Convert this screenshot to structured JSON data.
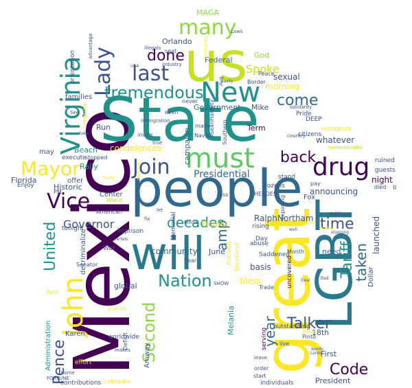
{
  "palette": {
    "dark_purple": "#440154",
    "indigo": "#3b528b",
    "blue": "#31688e",
    "teal": "#21918c",
    "green": "#35b779",
    "lime": "#90d743",
    "yellow": "#fde725",
    "pale": "#c9e021"
  },
  "words": [
    {
      "text": "Mexico",
      "color": "#440154"
    },
    {
      "text": "State",
      "color": "#21918c"
    },
    {
      "text": "people",
      "color": "#31688e"
    },
    {
      "text": "us",
      "color": "#c9e021"
    },
    {
      "text": "will",
      "color": "#2a788e"
    },
    {
      "text": "great",
      "color": "#fde725"
    },
    {
      "text": "LGBT",
      "color": "#2a788e"
    },
    {
      "text": "New",
      "color": "#21918c"
    },
    {
      "text": "must",
      "color": "#5ec962"
    },
    {
      "text": "Virginia",
      "color": "#21918c"
    },
    {
      "text": "drug",
      "color": "#440154"
    },
    {
      "text": "Join",
      "color": "#3b528b"
    },
    {
      "text": "John",
      "color": "#fde725"
    },
    {
      "text": "Mayor",
      "color": "#fde725"
    },
    {
      "text": "Vice",
      "color": "#440154"
    },
    {
      "text": "Lady",
      "color": "#3b528b"
    },
    {
      "text": "last",
      "color": "#3b528b"
    },
    {
      "text": "many",
      "color": "#90d743"
    },
    {
      "text": "tremendous",
      "color": "#21918c"
    },
    {
      "text": "done",
      "color": "#440154"
    },
    {
      "text": "come",
      "color": "#31688e"
    },
    {
      "text": "back",
      "color": "#440154"
    },
    {
      "text": "Spoke",
      "color": "#c9e021"
    },
    {
      "text": "decades",
      "color": "#21918c"
    },
    {
      "text": "Nation",
      "color": "#21918c"
    },
    {
      "text": "Second",
      "color": "#90d743"
    },
    {
      "text": "amp",
      "color": "#31688e"
    },
    {
      "text": "time",
      "color": "#3b528b"
    },
    {
      "text": "Talker",
      "color": "#3b528b"
    },
    {
      "text": "Code",
      "color": "#440154"
    },
    {
      "text": "Tariff",
      "color": "#21918c"
    },
    {
      "text": "taken",
      "color": "#31688e"
    },
    {
      "text": "year",
      "color": "#31688e"
    },
    {
      "text": "United",
      "color": "#21918c"
    },
    {
      "text": "Pence",
      "color": "#3b528b"
    },
    {
      "text": "Governor",
      "color": "#3b528b"
    },
    {
      "text": "Presidential",
      "color": "#31688e"
    },
    {
      "text": "RalphNortham",
      "color": "#3b528b"
    },
    {
      "text": "Orlando",
      "color": "#3b528b"
    },
    {
      "text": "Federal",
      "color": "#31688e"
    },
    {
      "text": "MAGA",
      "color": "#90d743"
    },
    {
      "text": "God",
      "color": "#90d743"
    },
    {
      "text": "sexual",
      "color": "#3b528b"
    },
    {
      "text": "whatever",
      "color": "#3b528b"
    },
    {
      "text": "morning",
      "color": "#fde725"
    },
    {
      "text": "Mike",
      "color": "#3b528b"
    },
    {
      "text": "Government",
      "color": "#31688e"
    },
    {
      "text": "Term",
      "color": "#440154"
    },
    {
      "text": "announcing",
      "color": "#3b528b"
    },
    {
      "text": "launched",
      "color": "#3b528b"
    },
    {
      "text": "night",
      "color": "#440154"
    },
    {
      "text": "Florida",
      "color": "#3b528b"
    },
    {
      "text": "Beach",
      "color": "#21918c"
    },
    {
      "text": "Rally",
      "color": "#21918c"
    },
    {
      "text": "Historic",
      "color": "#3b528b"
    },
    {
      "text": "condolences",
      "color": "#fde725"
    },
    {
      "text": "campaign",
      "color": "#31688e"
    },
    {
      "text": "community",
      "color": "#31688e"
    },
    {
      "text": "Tickets",
      "color": "#fde725"
    },
    {
      "text": "June",
      "color": "#3b528b"
    },
    {
      "text": "bless",
      "color": "#fde725"
    },
    {
      "text": "basis",
      "color": "#3b528b"
    },
    {
      "text": "need",
      "color": "#31688e"
    },
    {
      "text": "First",
      "color": "#3b528b"
    },
    {
      "text": "18th",
      "color": "#3b528b"
    },
    {
      "text": "President",
      "color": "#3b528b"
    },
    {
      "text": "individuals",
      "color": "#3b528b"
    },
    {
      "text": "Karen",
      "color": "#3b528b"
    },
    {
      "text": "Amway",
      "color": "#3b528b"
    },
    {
      "text": "global",
      "color": "#3b528b"
    },
    {
      "text": "worldwide",
      "color": "#3b528b"
    },
    {
      "text": "decriminalize",
      "color": "#3b528b"
    },
    {
      "text": "Administration",
      "color": "#21918c"
    },
    {
      "text": "families",
      "color": "#3b528b"
    },
    {
      "text": "orientation",
      "color": "#3b528b"
    },
    {
      "text": "Run",
      "color": "#3b528b"
    },
    {
      "text": "execute",
      "color": "#3b528b"
    },
    {
      "text": "offer",
      "color": "#3b528b"
    },
    {
      "text": "may",
      "color": "#3b528b"
    },
    {
      "text": "Enjoy",
      "color": "#3b528b"
    },
    {
      "text": "imprison",
      "color": "#3b528b"
    },
    {
      "text": "War",
      "color": "#3b528b"
    },
    {
      "text": "tonight",
      "color": "#3b528b"
    },
    {
      "text": "Senator",
      "color": "#3b528b"
    },
    {
      "text": "PM",
      "color": "#3b528b"
    },
    {
      "text": "Center",
      "color": "#3b528b"
    },
    {
      "text": "World",
      "color": "#c9e021"
    },
    {
      "text": "American",
      "color": "#3b528b"
    },
    {
      "text": "stopped",
      "color": "#3b528b"
    },
    {
      "text": "Dollar",
      "color": "#3b528b"
    },
    {
      "text": "Billion",
      "color": "#3b528b"
    },
    {
      "text": "Fox",
      "color": "#3b528b"
    },
    {
      "text": "ruined",
      "color": "#3b528b"
    },
    {
      "text": "guests",
      "color": "#3b528b"
    },
    {
      "text": "died",
      "color": "#3b528b"
    },
    {
      "text": "pay",
      "color": "#3b528b"
    },
    {
      "text": "HEROES",
      "color": "#3b528b"
    },
    {
      "text": "stand",
      "color": "#3b528b"
    },
    {
      "text": "Pride",
      "color": "#3b528b"
    },
    {
      "text": "DEEP",
      "color": "#3b528b"
    },
    {
      "text": "recognize",
      "color": "#fde725"
    },
    {
      "text": "homosexuality",
      "color": "#c9e021"
    },
    {
      "text": "citizens",
      "color": "#3b528b"
    },
    {
      "text": "country",
      "color": "#3b528b"
    },
    {
      "text": "solidarity",
      "color": "#3b528b"
    },
    {
      "text": "Peace",
      "color": "#3b528b"
    },
    {
      "text": "Border",
      "color": "#3b528b"
    },
    {
      "text": "dozens",
      "color": "#3b528b"
    },
    {
      "text": "Saddened",
      "color": "#3b528b"
    },
    {
      "text": "abuse",
      "color": "#3b528b"
    },
    {
      "text": "uncovered",
      "color": "#440154"
    },
    {
      "text": "Month",
      "color": "#3b528b"
    },
    {
      "text": "Trade",
      "color": "#3b528b"
    },
    {
      "text": "serving",
      "color": "#440154"
    },
    {
      "text": "outstanding",
      "color": "#3b528b"
    },
    {
      "text": "live",
      "color": "#3b528b"
    },
    {
      "text": "order",
      "color": "#3b528b"
    },
    {
      "text": "start",
      "color": "#3b528b"
    },
    {
      "text": "Pinto",
      "color": "#3b528b"
    },
    {
      "text": "leave",
      "color": "#3b528b"
    },
    {
      "text": "rising",
      "color": "#3b528b"
    },
    {
      "text": "Day",
      "color": "#3b528b"
    },
    {
      "text": "SHOW",
      "color": "#3b528b"
    },
    {
      "text": "hear",
      "color": "#3b528b"
    },
    {
      "text": "Memorial",
      "color": "#3b528b"
    },
    {
      "text": "fellow",
      "color": "#3b528b"
    },
    {
      "text": "loss",
      "color": "#3b528b"
    },
    {
      "text": "fix",
      "color": "#3b528b"
    },
    {
      "text": "let",
      "color": "#3b528b"
    },
    {
      "text": "seat",
      "color": "#3b528b"
    },
    {
      "text": "even",
      "color": "#3b528b"
    },
    {
      "text": "never",
      "color": "#3b528b"
    },
    {
      "text": "invite",
      "color": "#3b528b"
    },
    {
      "text": "true",
      "color": "#3b528b"
    },
    {
      "text": "made",
      "color": "#3b528b"
    },
    {
      "text": "Navajo",
      "color": "#3b528b"
    },
    {
      "text": "SeanHannity",
      "color": "#3b528b"
    },
    {
      "text": "Southern",
      "color": "#3b528b"
    },
    {
      "text": "Weekend",
      "color": "#fde725"
    },
    {
      "text": "Melania",
      "color": "#21918c"
    },
    {
      "text": "nothing",
      "color": "#fde725"
    },
    {
      "text": "Deficit",
      "color": "#3b528b"
    },
    {
      "text": "effort",
      "color": "#fde725"
    },
    {
      "text": "contributions",
      "color": "#3b528b"
    },
    {
      "text": "celebrate",
      "color": "#fde725"
    },
    {
      "text": "home",
      "color": "#3b528b"
    },
    {
      "text": "FORTUNE",
      "color": "#3b528b"
    },
    {
      "text": "makes",
      "color": "#3b528b"
    },
    {
      "text": "punish",
      "color": "#fde725"
    },
    {
      "text": "Rest",
      "color": "#fde725"
    },
    {
      "text": "coming",
      "color": "#fde725"
    },
    {
      "text": "finally",
      "color": "#fde725"
    },
    {
      "text": "Immigration",
      "color": "#3b528b"
    },
    {
      "text": "Longtime",
      "color": "#fde725"
    },
    {
      "text": "See",
      "color": "#3b528b"
    },
    {
      "text": "take",
      "color": "#3b528b"
    },
    {
      "text": "illegals",
      "color": "#3b528b"
    },
    {
      "text": "Laws",
      "color": "#3b528b"
    },
    {
      "text": "industry",
      "color": "#3b528b"
    },
    {
      "text": "easily",
      "color": "#3b528b"
    },
    {
      "text": "countries",
      "color": "#fde725"
    },
    {
      "text": "Aug",
      "color": "#3b528b"
    },
    {
      "text": "USA",
      "color": "#3b528b"
    },
    {
      "text": "advantage",
      "color": "#3b528b"
    },
    {
      "text": "II",
      "color": "#3b528b"
    },
    {
      "text": "exposing",
      "color": "#3b528b"
    },
    {
      "text": "pocket",
      "color": "#fde725"
    },
    {
      "text": "stopping",
      "color": "#3b528b"
    },
    {
      "text": "Bad",
      "color": "#3b528b"
    },
    {
      "text": "power",
      "color": "#fde725"
    },
    {
      "text": "Lords",
      "color": "#3b528b"
    },
    {
      "text": "Conservative",
      "color": "#fde725"
    },
    {
      "text": "cartels",
      "color": "#3b528b"
    },
    {
      "text": "Deal",
      "color": "#3b528b"
    },
    {
      "text": "well",
      "color": "#3b528b"
    },
    {
      "text": "words",
      "color": "#3b528b"
    }
  ]
}
